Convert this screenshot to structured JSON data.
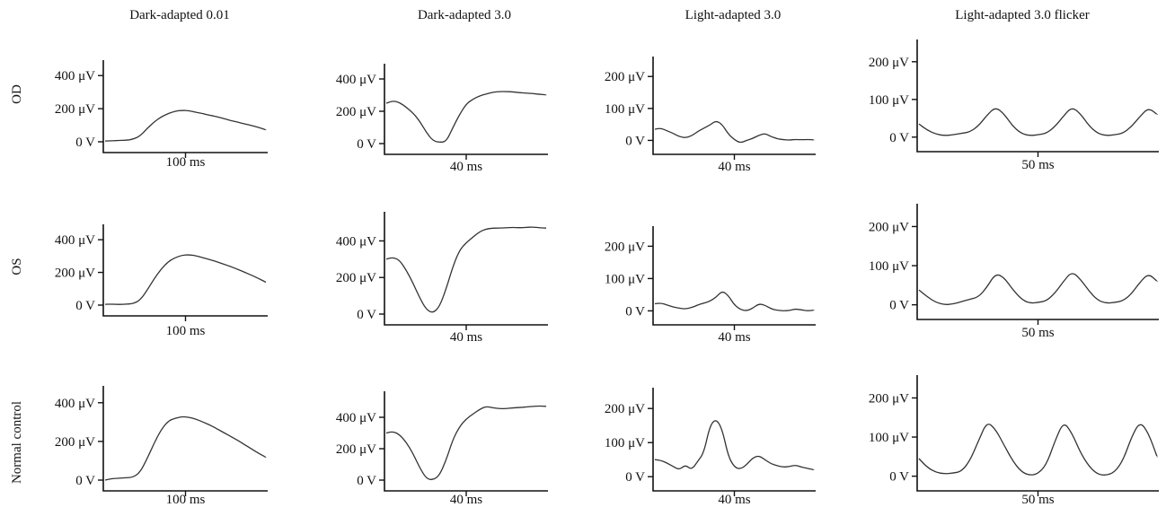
{
  "columns": [
    "Dark-adapted 0.01",
    "Dark-adapted 3.0",
    "Light-adapted 3.0",
    "Light-adapted 3.0 flicker"
  ],
  "rows": [
    "OD",
    "OS",
    "Normal control"
  ],
  "chart_data": [
    {
      "type": "line",
      "row": "OD",
      "column": "Dark-adapted 0.01",
      "yticks": [
        "400 μV",
        "200 μV",
        "0 V"
      ],
      "scalebar": "100 ms",
      "ylim": [
        0,
        450
      ],
      "y": [
        5,
        6,
        8,
        9,
        15,
        35,
        80,
        120,
        150,
        170,
        185,
        190,
        188,
        178,
        170,
        160,
        152,
        140,
        128,
        118,
        108,
        98,
        86,
        72
      ]
    },
    {
      "type": "line",
      "row": "OD",
      "column": "Dark-adapted 3.0",
      "yticks": [
        "400 μV",
        "200 μV",
        "0 V"
      ],
      "scalebar": "40 ms",
      "ylim": [
        0,
        450
      ],
      "y": [
        250,
        265,
        255,
        225,
        190,
        140,
        70,
        18,
        8,
        12,
        100,
        180,
        245,
        275,
        295,
        308,
        318,
        322,
        322,
        320,
        316,
        312,
        310,
        305,
        302
      ]
    },
    {
      "type": "line",
      "row": "OD",
      "column": "Light-adapted 3.0",
      "yticks": [
        "200 μV",
        "100 μV",
        "0 V"
      ],
      "scalebar": "40 ms",
      "ylim": [
        -10,
        240
      ],
      "y": [
        35,
        38,
        30,
        22,
        12,
        8,
        14,
        28,
        38,
        48,
        62,
        50,
        20,
        2,
        -8,
        0,
        6,
        16,
        22,
        12,
        5,
        2,
        1,
        3,
        2,
        3,
        2
      ]
    },
    {
      "type": "line",
      "row": "OD",
      "column": "Light-adapted 3.0 flicker",
      "yticks": [
        "200 μV",
        "100 μV",
        "0 V"
      ],
      "scalebar": "50 ms",
      "ylim": [
        -10,
        240
      ],
      "y": [
        35,
        18,
        8,
        4,
        6,
        10,
        14,
        30,
        58,
        80,
        62,
        30,
        10,
        4,
        6,
        10,
        28,
        56,
        80,
        62,
        30,
        10,
        4,
        6,
        10,
        28,
        55,
        78,
        60
      ]
    },
    {
      "type": "line",
      "row": "OS",
      "column": "Dark-adapted 0.01",
      "yticks": [
        "400 μV",
        "200 μV",
        "0 V"
      ],
      "scalebar": "100 ms",
      "ylim": [
        0,
        450
      ],
      "y": [
        5,
        6,
        4,
        6,
        8,
        30,
        90,
        160,
        220,
        265,
        290,
        305,
        308,
        302,
        290,
        278,
        265,
        250,
        235,
        218,
        200,
        182,
        162,
        140
      ]
    },
    {
      "type": "line",
      "row": "OS",
      "column": "Dark-adapted 3.0",
      "yticks": [
        "400 μV",
        "200 μV",
        "0 V"
      ],
      "scalebar": "40 ms",
      "ylim": [
        0,
        520
      ],
      "y": [
        300,
        310,
        295,
        240,
        170,
        90,
        25,
        5,
        40,
        140,
        260,
        350,
        390,
        420,
        450,
        465,
        470,
        470,
        472,
        474,
        472,
        474,
        476,
        472,
        470
      ]
    },
    {
      "type": "line",
      "row": "OS",
      "column": "Light-adapted 3.0",
      "yticks": [
        "200 μV",
        "100 μV",
        "0 V"
      ],
      "scalebar": "40 ms",
      "ylim": [
        -10,
        240
      ],
      "y": [
        22,
        24,
        18,
        12,
        8,
        6,
        10,
        18,
        24,
        30,
        42,
        62,
        48,
        18,
        4,
        0,
        8,
        22,
        18,
        6,
        2,
        0,
        1,
        6,
        3,
        0,
        2
      ]
    },
    {
      "type": "line",
      "row": "OS",
      "column": "Light-adapted 3.0 flicker",
      "yticks": [
        "200 μV",
        "100 μV",
        "0 V"
      ],
      "scalebar": "50 ms",
      "ylim": [
        -10,
        240
      ],
      "y": [
        38,
        20,
        6,
        0,
        2,
        8,
        14,
        20,
        45,
        80,
        70,
        40,
        15,
        4,
        6,
        10,
        30,
        60,
        85,
        65,
        35,
        12,
        4,
        6,
        10,
        28,
        58,
        80,
        60
      ]
    },
    {
      "type": "line",
      "row": "Normal control",
      "column": "Dark-adapted 0.01",
      "yticks": [
        "400 μV",
        "200 μV",
        "0 V"
      ],
      "scalebar": "100 ms",
      "ylim": [
        0,
        450
      ],
      "y": [
        0,
        8,
        10,
        12,
        15,
        40,
        110,
        190,
        260,
        305,
        320,
        328,
        325,
        315,
        300,
        285,
        265,
        245,
        225,
        205,
        182,
        160,
        138,
        118
      ]
    },
    {
      "type": "line",
      "row": "Normal control",
      "column": "Dark-adapted 3.0",
      "yticks": [
        "400 μV",
        "200 μV",
        "0 V"
      ],
      "scalebar": "40 ms",
      "ylim": [
        0,
        520
      ],
      "y": [
        300,
        310,
        290,
        240,
        170,
        80,
        10,
        0,
        30,
        130,
        260,
        340,
        390,
        420,
        450,
        470,
        460,
        455,
        455,
        460,
        462,
        466,
        470,
        472,
        470
      ]
    },
    {
      "type": "line",
      "row": "Normal control",
      "column": "Light-adapted 3.0",
      "yticks": [
        "200 μV",
        "100 μV",
        "0 V"
      ],
      "scalebar": "40 ms",
      "ylim": [
        -10,
        240
      ],
      "y": [
        50,
        48,
        40,
        30,
        20,
        35,
        20,
        45,
        70,
        150,
        170,
        140,
        60,
        28,
        22,
        35,
        55,
        62,
        50,
        38,
        32,
        28,
        30,
        34,
        28,
        24,
        20
      ]
    },
    {
      "type": "line",
      "row": "Normal control",
      "column": "Light-adapted 3.0 flicker",
      "yticks": [
        "200 μV",
        "100 μV",
        "0 V"
      ],
      "scalebar": "50 ms",
      "ylim": [
        -10,
        240
      ],
      "y": [
        45,
        22,
        10,
        6,
        8,
        12,
        40,
        90,
        140,
        120,
        80,
        40,
        12,
        2,
        6,
        30,
        90,
        140,
        110,
        60,
        25,
        5,
        2,
        10,
        40,
        100,
        140,
        110,
        50
      ]
    }
  ]
}
